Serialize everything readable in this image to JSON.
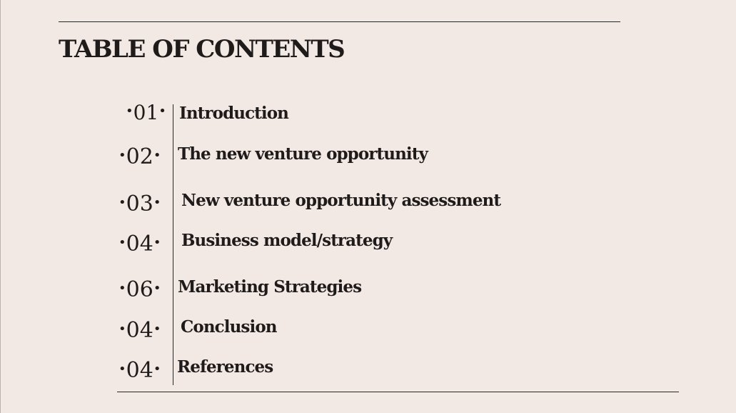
{
  "title": "TABLE OF CONTENTS",
  "items": [
    {
      "number": "01",
      "label": "Introduction"
    },
    {
      "number": "02",
      "label": "The new venture opportunity"
    },
    {
      "number": "03",
      "label": "New venture opportunity assessment"
    },
    {
      "number": "04",
      "label": "Business model/strategy"
    },
    {
      "number": "06",
      "label": "Marketing Strategies"
    },
    {
      "number": "04",
      "label": "Conclusion"
    },
    {
      "number": "04",
      "label": "References"
    }
  ],
  "colors": {
    "background": "#f3e9e4",
    "text": "#1f1b1a"
  }
}
